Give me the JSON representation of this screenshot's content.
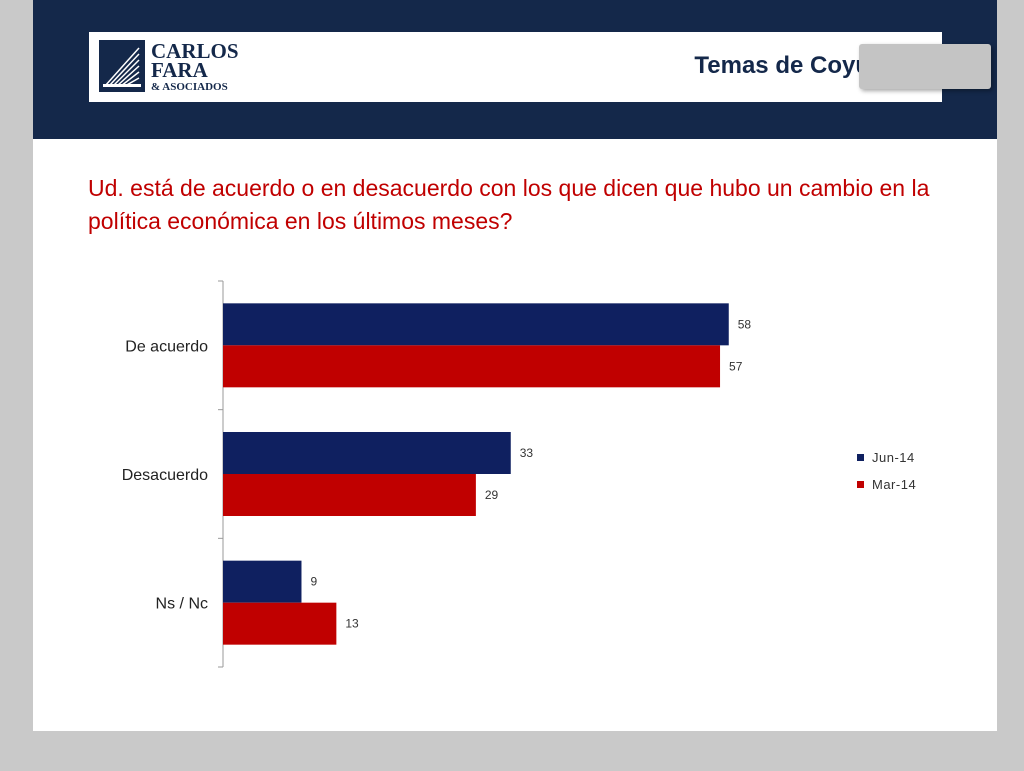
{
  "header": {
    "logo": {
      "line1": "CARLOS",
      "line2": "FARA",
      "line3": "& ASOCIADOS"
    },
    "title": "Temas de Coyuntura"
  },
  "question": "Ud. está de acuerdo o en desacuerdo con los que dicen que hubo un cambio en la política económica en los últimos meses?",
  "colors": {
    "header_bg": "#14284a",
    "series1": "#0f2060",
    "series2": "#c00000",
    "title_text": "#c00000"
  },
  "chart_data": {
    "type": "bar",
    "orientation": "horizontal",
    "categories": [
      "De acuerdo",
      "Desacuerdo",
      "Ns / Nc"
    ],
    "series": [
      {
        "name": "Jun-14",
        "values": [
          58,
          33,
          9
        ]
      },
      {
        "name": "Mar-14",
        "values": [
          57,
          29,
          13
        ]
      }
    ],
    "xlim": [
      0,
      80
    ],
    "data_labels": true,
    "grid": false,
    "legend_position": "right"
  }
}
